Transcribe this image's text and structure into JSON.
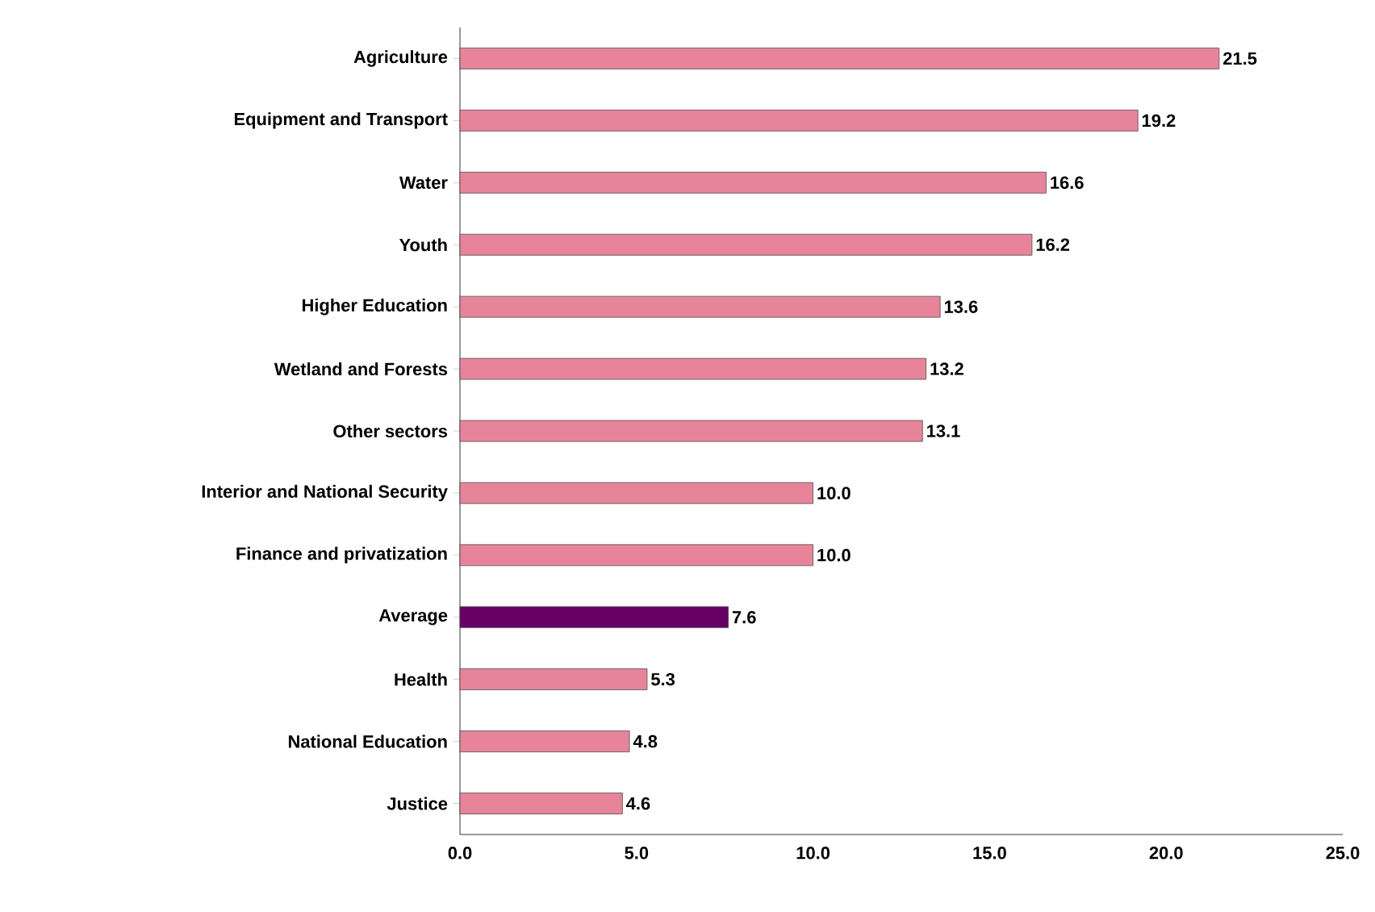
{
  "chart_data": {
    "type": "bar",
    "orientation": "horizontal",
    "categories": [
      "Agriculture",
      "Equipment and Transport",
      "Water",
      "Youth",
      "Higher Education",
      "Wetland and Forests",
      "Other sectors",
      "Interior and National Security",
      "Finance and privatization",
      "Average",
      "Health",
      "National Education",
      "Justice"
    ],
    "values": [
      21.5,
      19.2,
      16.6,
      16.2,
      13.6,
      13.2,
      13.1,
      10.0,
      10.0,
      7.6,
      5.3,
      4.8,
      4.6
    ],
    "value_labels": [
      "21.5",
      "19.2",
      "16.6",
      "16.2",
      "13.6",
      "13.2",
      "13.1",
      "10.0",
      "10.0",
      "7.6",
      "5.3",
      "4.8",
      "4.6"
    ],
    "colors": [
      "#e8849a",
      "#e8849a",
      "#e8849a",
      "#e8849a",
      "#e8849a",
      "#e8849a",
      "#e8849a",
      "#e8849a",
      "#e8849a",
      "#660066",
      "#e8849a",
      "#e8849a",
      "#e8849a"
    ],
    "xlim": [
      0,
      25
    ],
    "xticks": [
      {
        "value": 0,
        "label": "0.0"
      },
      {
        "value": 5,
        "label": "5.0"
      },
      {
        "value": 10,
        "label": "10.0"
      },
      {
        "value": 15,
        "label": "15.0"
      },
      {
        "value": 20,
        "label": "20.0"
      },
      {
        "value": 25,
        "label": "25.0"
      }
    ],
    "grid": false
  }
}
